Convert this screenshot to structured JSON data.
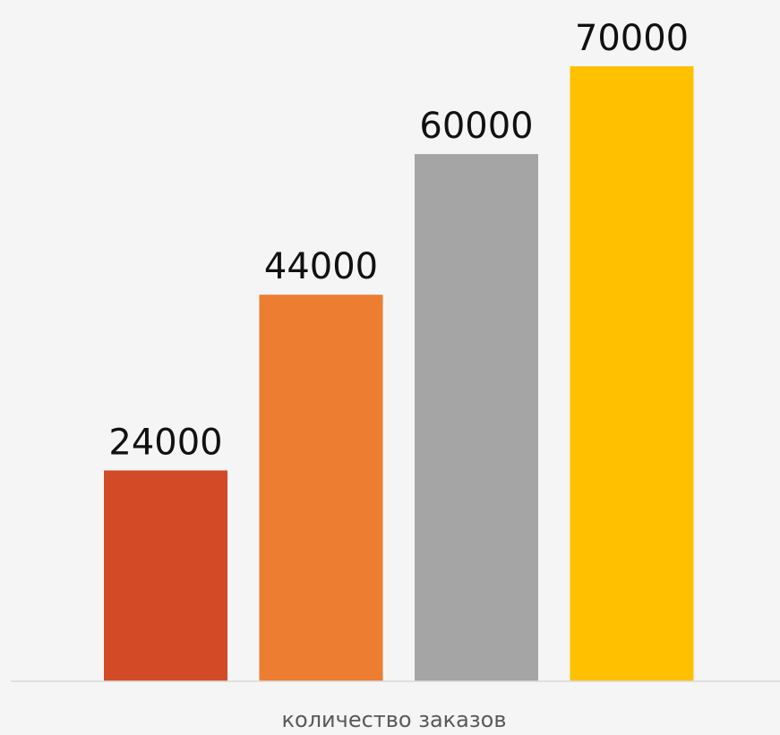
{
  "chart_data": {
    "type": "bar",
    "xlabel": "количество заказов",
    "ylabel": "",
    "ylim": [
      0,
      70000
    ],
    "grid": false,
    "legend": "none",
    "data_labels": true,
    "series": [
      {
        "values": [
          24000,
          44000,
          60000,
          70000
        ],
        "colors": [
          "#d24a26",
          "#ed7d31",
          "#a5a5a5",
          "#ffc000"
        ]
      }
    ]
  },
  "axis_color": "#d9d9d9",
  "background": "#f5f5f5"
}
